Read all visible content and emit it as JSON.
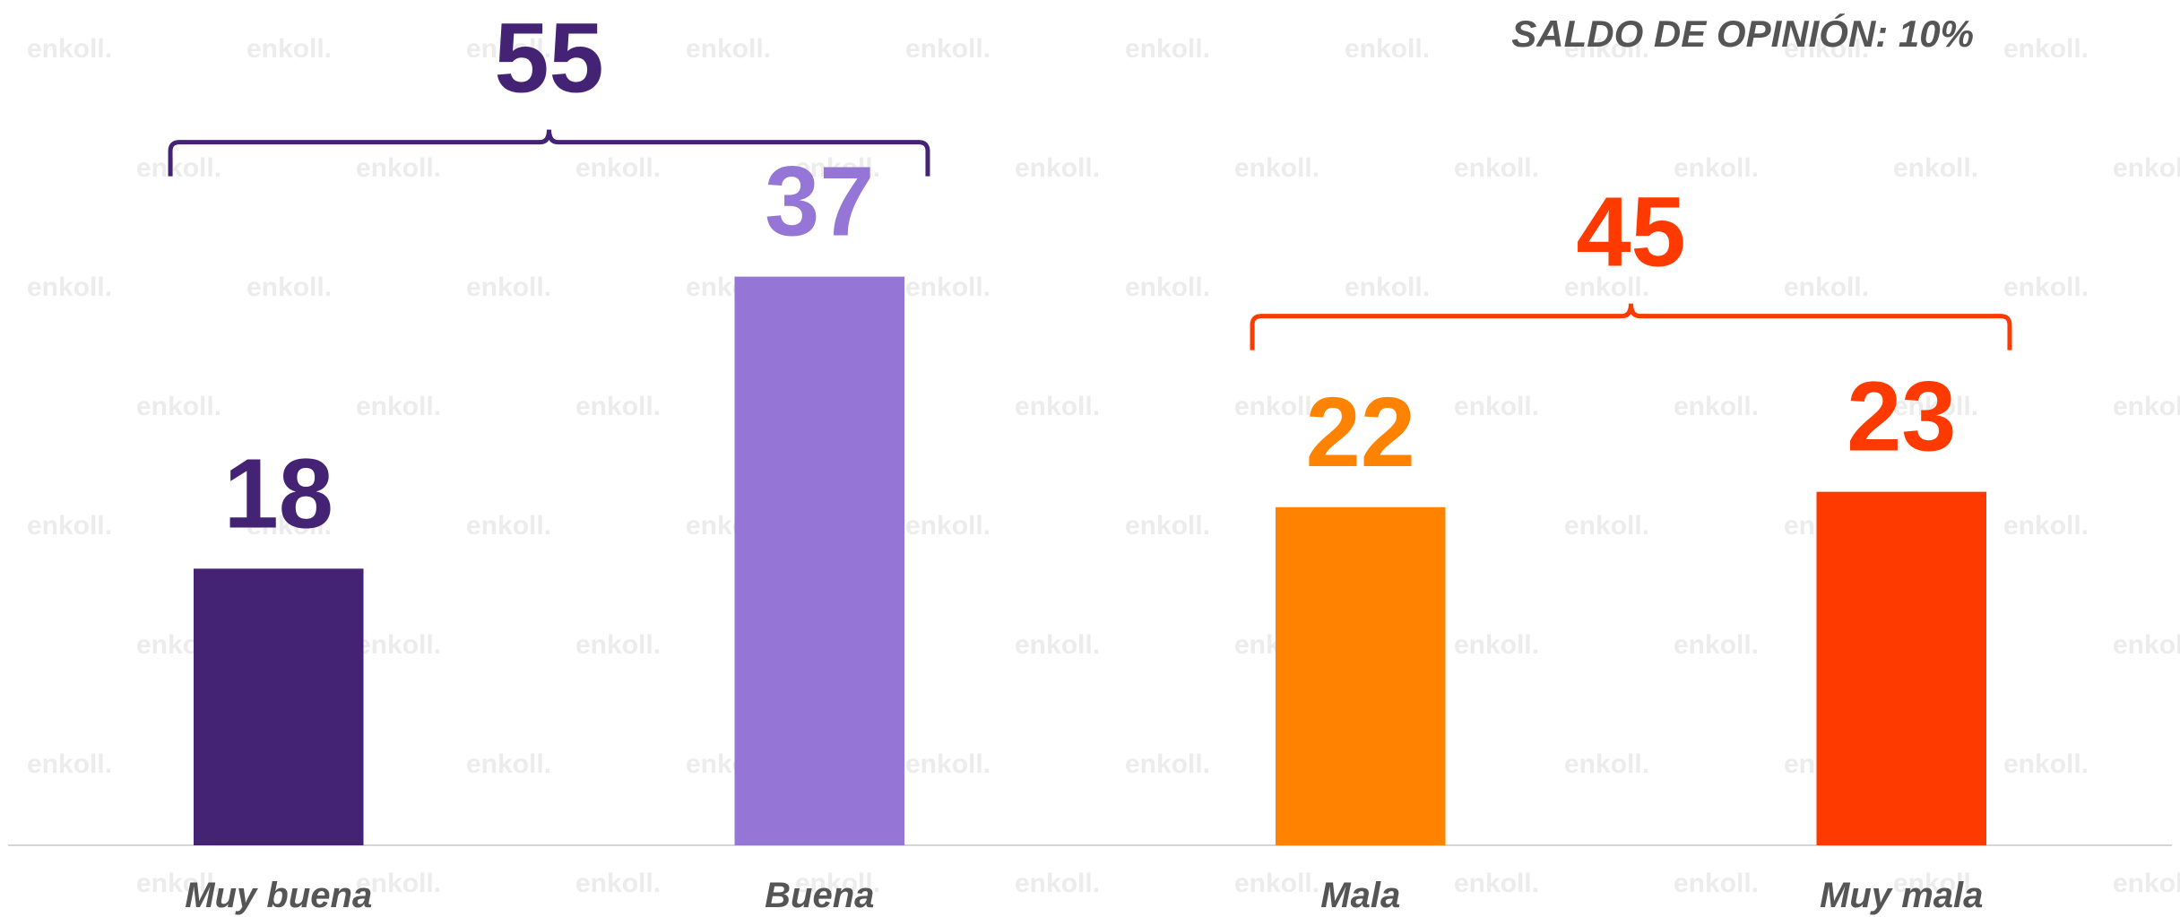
{
  "chart_data": {
    "type": "bar",
    "annotation": "SALDO DE OPINIÓN: 10%",
    "watermark": "enkoll.",
    "categories": [
      "Muy buena",
      "Buena",
      "Mala",
      "Muy mala"
    ],
    "values": [
      18,
      37,
      22,
      23
    ],
    "colors": [
      "#442375",
      "#9575d6",
      "#ff8200",
      "#ff3a00"
    ],
    "ylim": [
      0,
      55
    ],
    "groups": [
      {
        "total": 55,
        "color": "#442375",
        "members": [
          "Muy buena",
          "Buena"
        ]
      },
      {
        "total": 45,
        "color": "#ff3a00",
        "members": [
          "Mala",
          "Muy mala"
        ]
      }
    ]
  }
}
